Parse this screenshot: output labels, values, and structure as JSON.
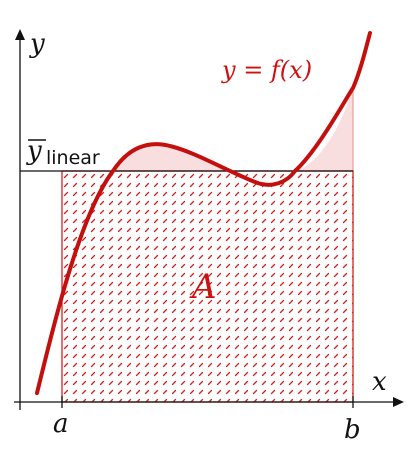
{
  "figure": {
    "y_axis_label": "y",
    "x_axis_label": "x",
    "function_label": "y = f(x)",
    "area_label": "A",
    "mean_label_main": "y",
    "mean_label_sub": "linear",
    "a_label": "a",
    "b_label": "b"
  },
  "colors": {
    "curve": "#c40f0f",
    "area_stroke": "#d42020",
    "area_pattern": "#d42020",
    "fill_light": "#f6d6d6",
    "axis": "#111111"
  }
}
